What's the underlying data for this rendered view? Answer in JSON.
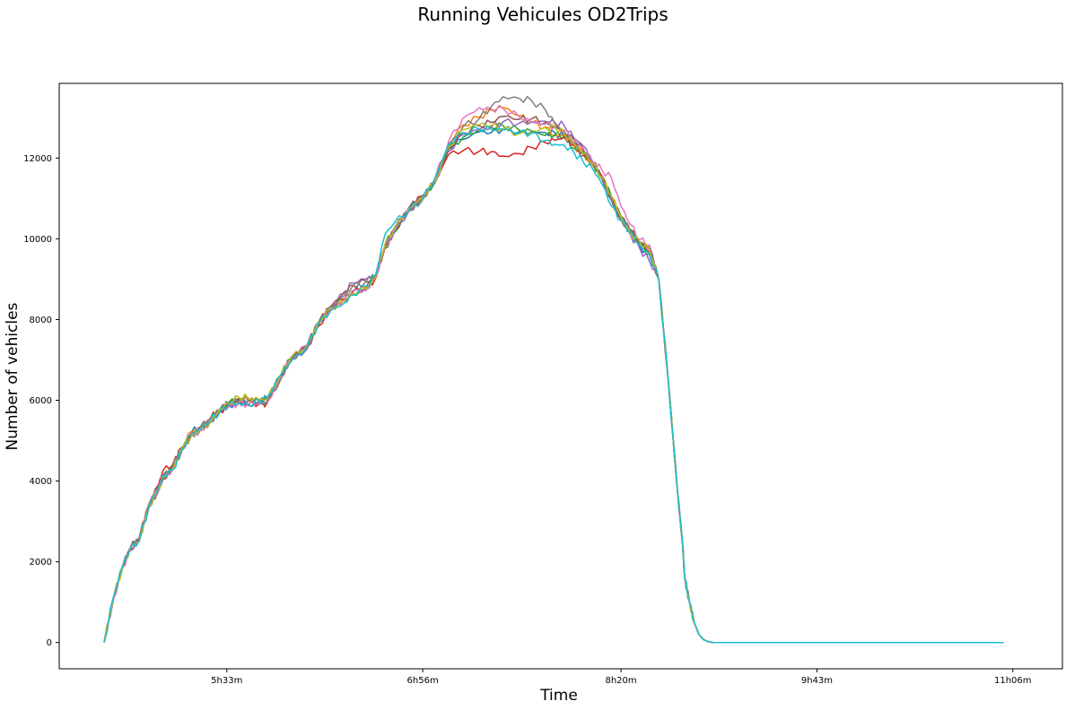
{
  "chart_data": {
    "type": "line",
    "title": "Running Vehicules OD2Trips",
    "xlabel": "Time",
    "ylabel": "Number of vehicles",
    "x_unit": "minutes since midnight",
    "xlim": [
      262,
      687
    ],
    "ylim": [
      -650,
      13850
    ],
    "x_ticks": [
      {
        "value": 333,
        "label": "5h33m"
      },
      {
        "value": 416,
        "label": "6h56m"
      },
      {
        "value": 500,
        "label": "8h20m"
      },
      {
        "value": 583,
        "label": "9h43m"
      },
      {
        "value": 666,
        "label": "11h06m"
      }
    ],
    "y_ticks": [
      0,
      2000,
      4000,
      6000,
      8000,
      10000,
      12000
    ],
    "grid": false,
    "legend": "none",
    "colors": [
      "#1f77b4",
      "#ff7f0e",
      "#2ca02c",
      "#d62728",
      "#9467bd",
      "#8c564b",
      "#e377c2",
      "#7f7f7f",
      "#bcbd22",
      "#17becf"
    ],
    "base_x": [
      281,
      285,
      289,
      292,
      296,
      300,
      304,
      306,
      310,
      314,
      318,
      322,
      326,
      330,
      334,
      338,
      342,
      347,
      350,
      356,
      360,
      367,
      372,
      377,
      383,
      386,
      392,
      396,
      400,
      404,
      410,
      416,
      421,
      427,
      433,
      440,
      445,
      450,
      457,
      462,
      468,
      472,
      476,
      480,
      484,
      488,
      492,
      496,
      500,
      504,
      508,
      512,
      516,
      520,
      524,
      526,
      527,
      529,
      531,
      533,
      535,
      537,
      539,
      542,
      546,
      550,
      556,
      570,
      600,
      640,
      662
    ],
    "base_y": [
      0,
      1100,
      1900,
      2300,
      2550,
      3400,
      3800,
      4100,
      4300,
      4800,
      5150,
      5300,
      5500,
      5750,
      5900,
      5980,
      5950,
      5980,
      6000,
      6600,
      7000,
      7300,
      7900,
      8250,
      8500,
      8650,
      8800,
      9050,
      9800,
      10200,
      10700,
      11000,
      11400,
      12200,
      12500,
      12650,
      12700,
      12750,
      12700,
      12700,
      12600,
      12550,
      12500,
      12300,
      12100,
      11850,
      11500,
      11000,
      10500,
      10200,
      9900,
      9700,
      9000,
      6500,
      3700,
      2500,
      1600,
      1000,
      500,
      200,
      70,
      20,
      0,
      0,
      0,
      0,
      0,
      0,
      0,
      0,
      0
    ],
    "series_peaks": [
      12720,
      13050,
      12750,
      12450,
      12900,
      12950,
      13080,
      13220,
      12880,
      12700
    ],
    "series": [
      {
        "offsets": [
          0,
          0,
          20,
          40,
          10,
          -50,
          30,
          20,
          -20,
          -40,
          50,
          60,
          0,
          -20,
          -40,
          10,
          60,
          10,
          50,
          -30,
          40,
          0,
          20,
          30,
          0,
          -40,
          -80,
          40,
          20,
          70,
          60,
          80,
          30,
          50,
          -30,
          20,
          -50,
          0,
          -20,
          -40,
          40,
          80,
          20,
          0,
          60,
          10,
          40,
          -50,
          -30,
          -60,
          -90,
          -100,
          0,
          0,
          0,
          0,
          0,
          0,
          0,
          0,
          0,
          0,
          0,
          0,
          0,
          0,
          0,
          0,
          0,
          0,
          0
        ]
      },
      {
        "offsets": [
          0,
          20,
          -30,
          20,
          60,
          40,
          -20,
          -30,
          70,
          40,
          80,
          0,
          60,
          20,
          20,
          80,
          90,
          -10,
          0,
          -40,
          50,
          20,
          60,
          40,
          0,
          10,
          -20,
          -40,
          30,
          20,
          40,
          -40,
          70,
          100,
          200,
          180,
          250,
          200,
          100,
          0,
          50,
          -50,
          60,
          10,
          10,
          -40,
          60,
          30,
          40,
          -20,
          30,
          100,
          0,
          0,
          0,
          0,
          0,
          0,
          0,
          0,
          0,
          0,
          0,
          0,
          0,
          0,
          0,
          0,
          0,
          0,
          0
        ]
      },
      {
        "offsets": [
          0,
          20,
          10,
          -40,
          -10,
          -30,
          -20,
          40,
          -10,
          -20,
          0,
          -30,
          -30,
          0,
          60,
          -30,
          40,
          -30,
          40,
          40,
          30,
          50,
          -30,
          40,
          20,
          50,
          -60,
          10,
          -40,
          -50,
          20,
          20,
          -20,
          30,
          10,
          50,
          70,
          50,
          -20,
          -30,
          -40,
          20,
          50,
          -60,
          20,
          40,
          -20,
          40,
          60,
          20,
          -10,
          -80,
          0,
          0,
          0,
          0,
          0,
          0,
          0,
          0,
          0,
          0,
          0,
          0,
          0,
          0,
          0,
          0,
          0,
          0,
          0
        ]
      },
      {
        "offsets": [
          0,
          0,
          10,
          40,
          0,
          30,
          100,
          160,
          100,
          -40,
          40,
          10,
          40,
          -30,
          -20,
          -20,
          -60,
          -50,
          -80,
          -50,
          40,
          20,
          -60,
          30,
          30,
          20,
          -10,
          -30,
          -20,
          10,
          30,
          60,
          -30,
          -50,
          -200,
          -300,
          -300,
          -400,
          -350,
          -250,
          -100,
          -50,
          0,
          20,
          -40,
          10,
          -20,
          -60,
          20,
          -10,
          -20,
          -20,
          0,
          0,
          0,
          0,
          0,
          0,
          0,
          0,
          0,
          0,
          0,
          0,
          0,
          0,
          0,
          0,
          0,
          0,
          0
        ]
      },
      {
        "offsets": [
          0,
          0,
          20,
          20,
          30,
          20,
          40,
          30,
          -20,
          0,
          -40,
          -20,
          -50,
          40,
          40,
          0,
          -70,
          -70,
          -60,
          40,
          10,
          -30,
          20,
          80,
          150,
          250,
          200,
          40,
          10,
          -20,
          -30,
          20,
          10,
          -60,
          20,
          -40,
          -60,
          0,
          50,
          100,
          250,
          300,
          300,
          200,
          200,
          50,
          60,
          0,
          -30,
          -100,
          -150,
          -250,
          0,
          0,
          0,
          0,
          0,
          0,
          0,
          0,
          0,
          0,
          0,
          0,
          0,
          0,
          0,
          0,
          0,
          0,
          0
        ]
      },
      {
        "offsets": [
          0,
          30,
          0,
          40,
          60,
          -50,
          -50,
          -60,
          30,
          40,
          -10,
          50,
          40,
          20,
          -20,
          60,
          -70,
          40,
          30,
          20,
          -30,
          60,
          40,
          70,
          200,
          200,
          150,
          10,
          -20,
          40,
          60,
          20,
          60,
          -10,
          50,
          30,
          20,
          80,
          100,
          150,
          200,
          200,
          150,
          150,
          100,
          60,
          20,
          -40,
          0,
          30,
          10,
          40,
          0,
          0,
          0,
          0,
          0,
          0,
          0,
          0,
          0,
          0,
          0,
          0,
          0,
          0,
          0,
          0,
          0,
          0,
          0
        ]
      },
      {
        "offsets": [
          0,
          -20,
          -40,
          -40,
          -50,
          40,
          -20,
          -10,
          -30,
          -30,
          40,
          -50,
          20,
          -10,
          -60,
          -60,
          -40,
          -30,
          -50,
          -20,
          0,
          70,
          0,
          10,
          30,
          60,
          -60,
          20,
          -10,
          20,
          40,
          20,
          50,
          150,
          350,
          400,
          250,
          150,
          50,
          0,
          100,
          150,
          200,
          150,
          150,
          60,
          200,
          500,
          300,
          150,
          80,
          150,
          0,
          0,
          0,
          0,
          0,
          0,
          0,
          0,
          0,
          0,
          0,
          0,
          0,
          0,
          0,
          0,
          0,
          0,
          0
        ]
      },
      {
        "offsets": [
          0,
          10,
          40,
          20,
          10,
          0,
          -20,
          -30,
          60,
          -50,
          -30,
          30,
          -40,
          20,
          40,
          0,
          20,
          10,
          -40,
          -60,
          0,
          0,
          60,
          60,
          100,
          150,
          140,
          40,
          40,
          70,
          0,
          0,
          -30,
          -20,
          80,
          50,
          200,
          300,
          400,
          450,
          400,
          200,
          100,
          50,
          20,
          10,
          -10,
          -40,
          -20,
          0,
          20,
          60,
          0,
          0,
          0,
          0,
          0,
          0,
          0,
          0,
          0,
          0,
          0,
          0,
          0,
          0,
          0,
          0,
          0,
          0,
          0
        ]
      },
      {
        "offsets": [
          0,
          30,
          -20,
          40,
          -10,
          -20,
          0,
          10,
          -30,
          10,
          -40,
          20,
          -50,
          40,
          40,
          100,
          110,
          20,
          20,
          50,
          50,
          50,
          50,
          30,
          -50,
          -20,
          -30,
          0,
          70,
          60,
          30,
          50,
          30,
          40,
          150,
          100,
          0,
          -150,
          -200,
          -150,
          100,
          200,
          100,
          50,
          20,
          10,
          30,
          60,
          50,
          -60,
          10,
          20,
          0,
          0,
          0,
          0,
          0,
          0,
          0,
          0,
          0,
          0,
          0,
          0,
          0,
          0,
          0,
          0,
          0,
          0,
          0
        ]
      },
      {
        "offsets": [
          0,
          30,
          10,
          10,
          -10,
          0,
          40,
          40,
          -30,
          -40,
          20,
          -10,
          20,
          -50,
          30,
          -50,
          -50,
          0,
          60,
          40,
          -60,
          20,
          20,
          -30,
          -80,
          -40,
          30,
          40,
          300,
          200,
          -10,
          0,
          80,
          160,
          150,
          100,
          50,
          0,
          -40,
          -60,
          -150,
          -200,
          -180,
          -150,
          -200,
          -120,
          -150,
          -200,
          -50,
          -30,
          -60,
          -80,
          0,
          0,
          0,
          0,
          0,
          0,
          0,
          0,
          0,
          0,
          0,
          0,
          0,
          0,
          0,
          0,
          0,
          0,
          0
        ]
      }
    ]
  }
}
